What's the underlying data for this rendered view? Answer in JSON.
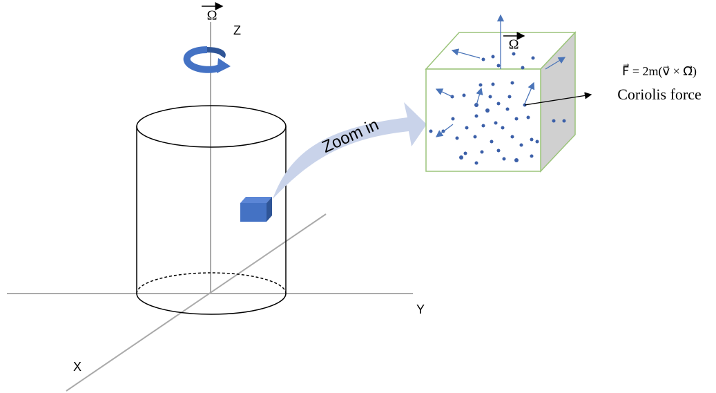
{
  "axes": {
    "omega": "Ω",
    "z": "Z",
    "y": "Y",
    "x": "X"
  },
  "zoom": {
    "label": "Zoom in"
  },
  "cube": {
    "omega": "Ω",
    "formula": "F⃗ = 2m(v⃗ × Ω⃗)",
    "force": "Coriolis force"
  }
}
